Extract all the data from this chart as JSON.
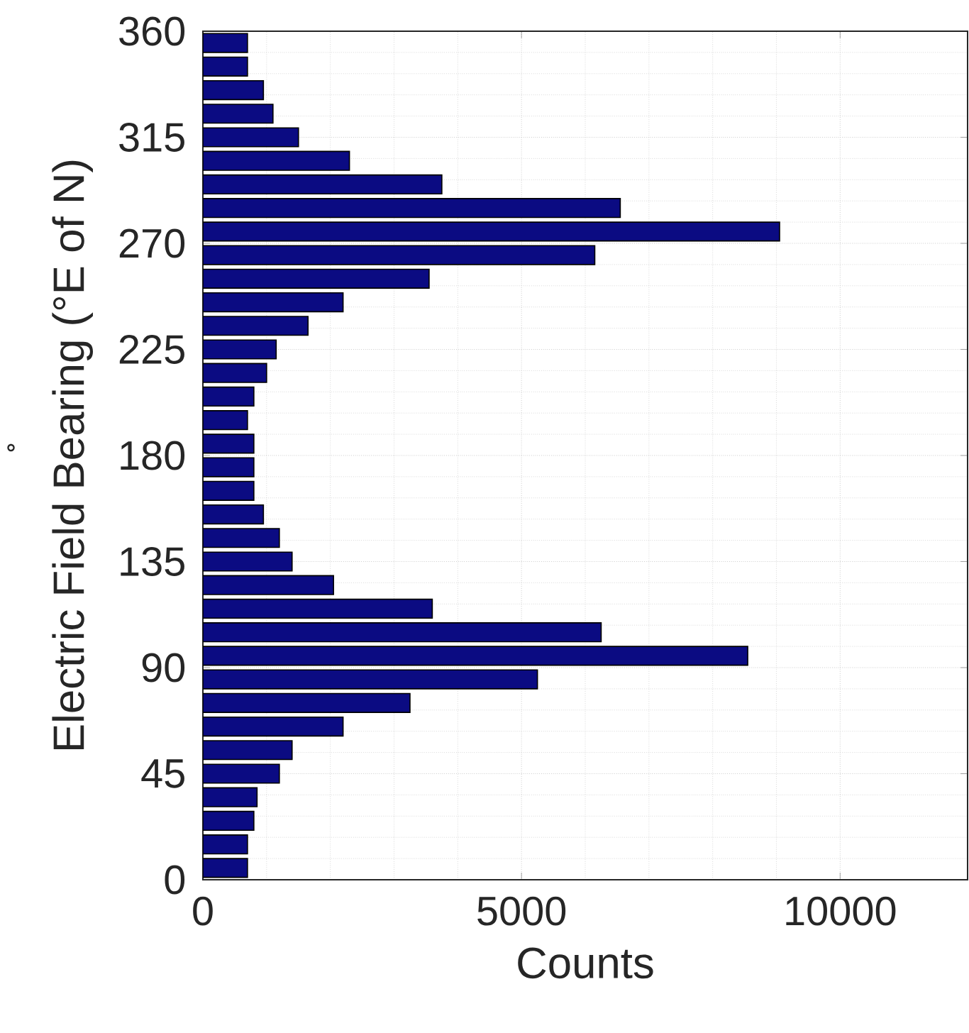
{
  "chart_data": {
    "type": "histogram",
    "orientation": "horizontal",
    "ylabel": "Electric Field Bearing (°E of N)",
    "xlabel": "Counts",
    "annotations": [
      "˚"
    ],
    "bins": [
      0,
      10,
      20,
      30,
      40,
      50,
      60,
      70,
      80,
      90,
      100,
      110,
      120,
      130,
      140,
      150,
      160,
      170,
      180,
      190,
      200,
      210,
      220,
      230,
      240,
      250,
      260,
      270,
      280,
      290,
      300,
      310,
      320,
      330,
      340,
      350,
      360
    ],
    "values": [
      700,
      700,
      800,
      850,
      1200,
      1400,
      2200,
      3250,
      5250,
      8550,
      6250,
      3600,
      2050,
      1400,
      1200,
      950,
      800,
      800,
      800,
      700,
      800,
      1000,
      1150,
      1650,
      2200,
      3550,
      6150,
      9050,
      6550,
      3750,
      2300,
      1500,
      1100,
      950,
      700,
      700
    ],
    "color": "#0b0b82",
    "xlim": [
      0,
      12000
    ],
    "xticks": [
      0,
      5000,
      10000
    ],
    "ylim": [
      0,
      360
    ],
    "yticks": [
      0,
      45,
      90,
      135,
      180,
      225,
      270,
      315,
      360
    ],
    "grid": true
  }
}
